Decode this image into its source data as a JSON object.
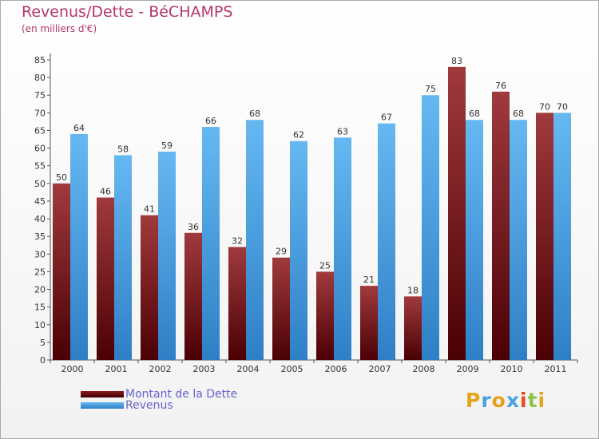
{
  "header": {
    "title": "Revenus/Dette - BéCHAMPS",
    "subtitle": "(en milliers d'€)"
  },
  "logo": {
    "text": "Proxiti"
  },
  "chart_data": {
    "type": "bar",
    "title": "Revenus/Dette - BéCHAMPS",
    "subtitle": "(en milliers d'€)",
    "xlabel": "",
    "ylabel": "",
    "ylim": [
      0,
      85
    ],
    "ytick_step": 5,
    "grid": false,
    "legend_position": "bottom-left",
    "categories": [
      "2000",
      "2001",
      "2002",
      "2003",
      "2004",
      "2005",
      "2006",
      "2007",
      "2008",
      "2009",
      "2010",
      "2011"
    ],
    "series": [
      {
        "name": "Montant de la Dette",
        "color": "#7a0f12",
        "values": [
          50,
          46,
          41,
          36,
          32,
          29,
          25,
          21,
          18,
          83,
          76,
          70
        ]
      },
      {
        "name": "Revenus",
        "color": "#4a9be0",
        "values": [
          64,
          58,
          59,
          66,
          68,
          62,
          63,
          67,
          75,
          68,
          68,
          70
        ]
      }
    ]
  }
}
